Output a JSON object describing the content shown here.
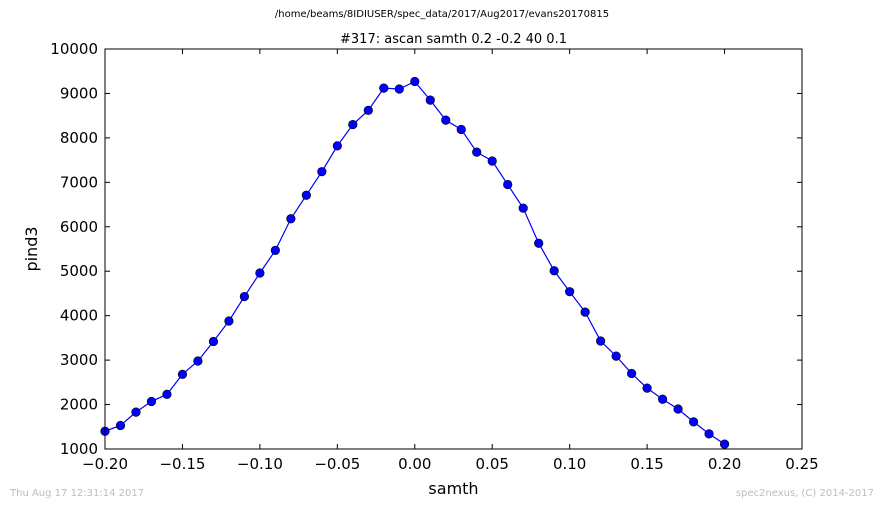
{
  "suptitle": "/home/beams/8IDIUSER/spec_data/2017/Aug2017/evans20170815",
  "footer": {
    "left": "Thu Aug 17 12:31:14 2017",
    "right": "spec2nexus, (C) 2014-2017"
  },
  "chart_data": {
    "type": "line",
    "title": "#317: ascan  samth 0.2 -0.2  40 0.1",
    "xlabel": "samth",
    "ylabel": "pind3",
    "xlim": [
      -0.2,
      0.25
    ],
    "ylim": [
      1000,
      10000
    ],
    "xticks": [
      -0.2,
      -0.15,
      -0.1,
      -0.05,
      0.0,
      0.05,
      0.1,
      0.15,
      0.2,
      0.25
    ],
    "xtick_labels": [
      "−0.20",
      "−0.15",
      "−0.10",
      "−0.05",
      "0.00",
      "0.05",
      "0.10",
      "0.15",
      "0.20",
      "0.25"
    ],
    "yticks": [
      1000,
      2000,
      3000,
      4000,
      5000,
      6000,
      7000,
      8000,
      9000,
      10000
    ],
    "ytick_labels": [
      "1000",
      "2000",
      "3000",
      "4000",
      "5000",
      "6000",
      "7000",
      "8000",
      "9000",
      "10000"
    ],
    "grid": false,
    "color": "#0000ff",
    "marker": "circle",
    "series": [
      {
        "x": [
          -0.2,
          -0.19,
          -0.18,
          -0.17,
          -0.16,
          -0.15,
          -0.14,
          -0.13,
          -0.12,
          -0.11,
          -0.1,
          -0.09,
          -0.08,
          -0.07,
          -0.06,
          -0.05,
          -0.04,
          -0.03,
          -0.02,
          -0.01,
          0.0,
          0.01,
          0.02,
          0.03,
          0.04,
          0.05,
          0.06,
          0.07,
          0.08,
          0.09,
          0.1,
          0.11,
          0.12,
          0.13,
          0.14,
          0.15,
          0.16,
          0.17,
          0.18,
          0.19,
          0.2
        ],
        "values": [
          1400,
          1530,
          1830,
          2070,
          2230,
          2680,
          2980,
          3420,
          3880,
          4430,
          4960,
          5470,
          6180,
          6710,
          7240,
          7820,
          8300,
          8620,
          9120,
          9100,
          9270,
          8850,
          8400,
          8190,
          7680,
          7480,
          6950,
          6420,
          5630,
          5010,
          4540,
          4080,
          3430,
          3090,
          2700,
          2370,
          2120,
          1900,
          1610,
          1340,
          1110
        ]
      }
    ]
  }
}
